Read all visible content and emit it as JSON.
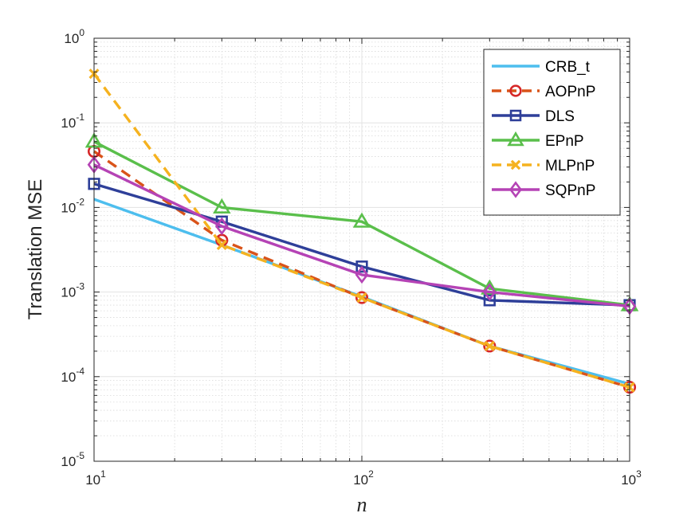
{
  "chart_data": {
    "type": "line",
    "title": "",
    "xlabel": "n",
    "ylabel": "Translation MSE",
    "xscale": "log",
    "yscale": "log",
    "xlim": [
      10,
      1000
    ],
    "ylim": [
      1e-05,
      1
    ],
    "x_ticks": [
      {
        "value": 10,
        "base": "10",
        "exp": "1"
      },
      {
        "value": 100,
        "base": "10",
        "exp": "2"
      },
      {
        "value": 1000,
        "base": "10",
        "exp": "3"
      }
    ],
    "y_ticks": [
      {
        "value": 1e-05,
        "base": "10",
        "exp": "-5"
      },
      {
        "value": 0.0001,
        "base": "10",
        "exp": "-4"
      },
      {
        "value": 0.001,
        "base": "10",
        "exp": "-3"
      },
      {
        "value": 0.01,
        "base": "10",
        "exp": "-2"
      },
      {
        "value": 0.1,
        "base": "10",
        "exp": "-1"
      },
      {
        "value": 1,
        "base": "10",
        "exp": "0"
      }
    ],
    "grid": true,
    "minor_grid": true,
    "legend_position": "top-right",
    "x": [
      10,
      30,
      100,
      300,
      1000
    ],
    "series": [
      {
        "name": "CRB_t",
        "color": "#4dbeee",
        "dash": "solid",
        "marker": "none",
        "values": [
          0.0125,
          0.0036,
          0.00088,
          0.00023,
          8.2e-05
        ]
      },
      {
        "name": "AOPnP",
        "color": "#d95319",
        "marker_color": "#d62728",
        "dash": "dashed",
        "marker": "circle",
        "values": [
          0.046,
          0.0041,
          0.00086,
          0.00023,
          7.5e-05
        ]
      },
      {
        "name": "DLS",
        "color": "#2e3f99",
        "dash": "solid",
        "marker": "square",
        "values": [
          0.019,
          0.0068,
          0.002,
          0.0008,
          0.0007
        ]
      },
      {
        "name": "EPnP",
        "color": "#5abf4b",
        "dash": "solid",
        "marker": "triangle",
        "values": [
          0.06,
          0.01,
          0.0068,
          0.0011,
          0.0007
        ]
      },
      {
        "name": "MLPnP",
        "color": "#f5b21f",
        "dash": "dashed",
        "marker": "x",
        "values": [
          0.38,
          0.0036,
          0.00086,
          0.00023,
          7.5e-05
        ]
      },
      {
        "name": "SQPnP",
        "color": "#b543b5",
        "dash": "solid",
        "marker": "diamond",
        "values": [
          0.032,
          0.006,
          0.0016,
          0.001,
          0.00068
        ]
      }
    ]
  }
}
